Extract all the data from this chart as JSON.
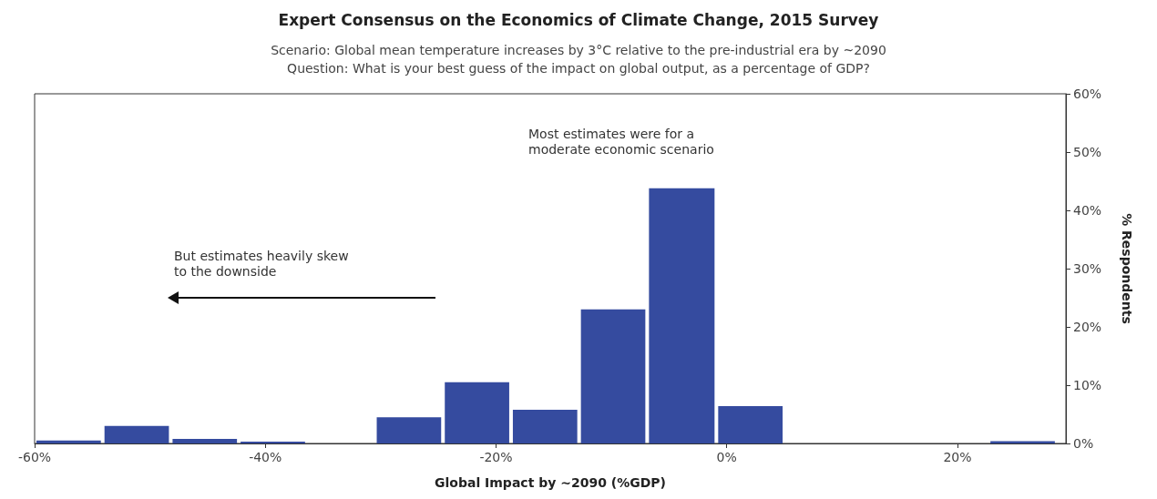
{
  "chart_data": {
    "type": "histogram",
    "title": "Expert Consensus on the Economics of Climate Change, 2015 Survey",
    "subtitle": "Scenario: Global mean temperature increases by 3°C relative to the pre-industrial era by ~2090\nQuestion: What is your best guess of the impact on global output, as a percentage of GDP?",
    "xlabel": "Global Impact by ~2090 (%GDP)",
    "ylabel": "% Respondents",
    "bins": [
      -60,
      -54.1,
      -48.2,
      -42.3,
      -36.4,
      -30.5,
      -24.6,
      -18.7,
      -12.8,
      -6.9,
      -0.9,
      5.0,
      22.7,
      28.6
    ],
    "values": [
      0.5,
      3.0,
      0.8,
      0.3,
      0,
      4.5,
      10.5,
      5.8,
      23.0,
      43.8,
      6.4,
      0,
      0.4
    ],
    "color": "#354b9f",
    "xlim": [
      -60,
      29.4
    ],
    "xticks": [
      {
        "value": -60,
        "label": "-60%"
      },
      {
        "value": -40,
        "label": "-40%"
      },
      {
        "value": -20,
        "label": "-20%"
      },
      {
        "value": 0,
        "label": "0%"
      },
      {
        "value": 20,
        "label": "20%"
      }
    ],
    "ylim": [
      0,
      60
    ],
    "yticks": [
      {
        "value": 0,
        "label": "0%"
      },
      {
        "value": 10,
        "label": "10%"
      },
      {
        "value": 20,
        "label": "20%"
      },
      {
        "value": 30,
        "label": "30%"
      },
      {
        "value": 40,
        "label": "40%"
      },
      {
        "value": 50,
        "label": "50%"
      },
      {
        "value": 60,
        "label": "60%"
      }
    ],
    "grid": false,
    "annotations": [
      "Most estimates were for a\nmoderate economic scenario",
      "But estimates heavily skew\nto the downside"
    ]
  }
}
